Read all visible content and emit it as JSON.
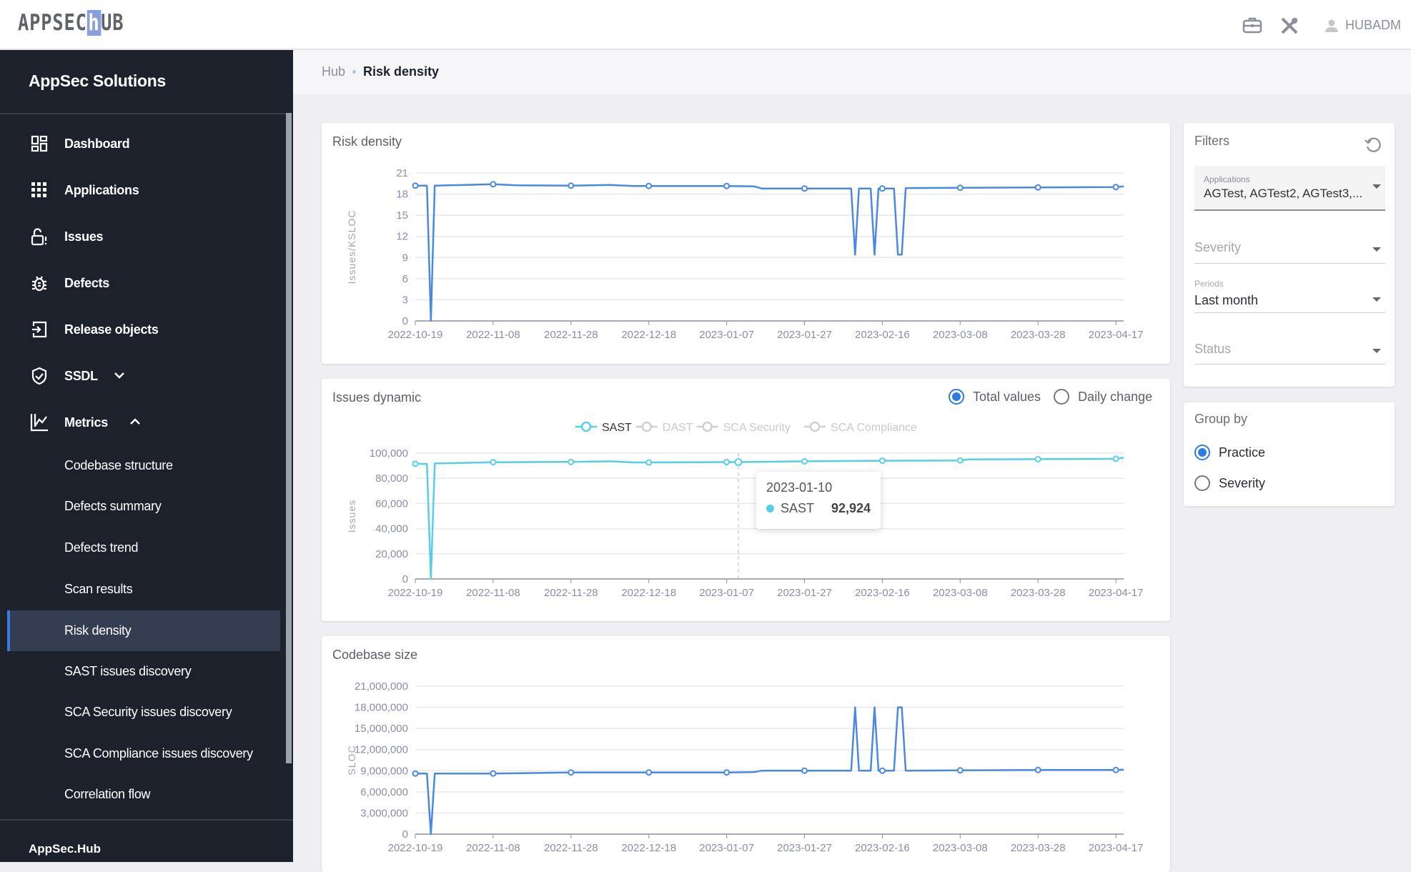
{
  "header": {
    "logo": "APPSEC HUB",
    "logo_left": "APPSEC",
    "logo_mark": "h",
    "logo_right": "UB",
    "user": "HUBADM",
    "icons": [
      "briefcase-icon",
      "tools-icon",
      "user-icon"
    ]
  },
  "sidebar": {
    "title": "AppSec Solutions",
    "items": [
      {
        "label": "Dashboard",
        "icon": "dashboard-icon"
      },
      {
        "label": "Applications",
        "icon": "apps-grid-icon"
      },
      {
        "label": "Issues",
        "icon": "unlocked-alert-icon"
      },
      {
        "label": "Defects",
        "icon": "bug-icon"
      },
      {
        "label": "Release objects",
        "icon": "release-icon"
      },
      {
        "label": "SSDL",
        "icon": "shield-check-icon",
        "expanded": false
      },
      {
        "label": "Metrics",
        "icon": "chart-icon",
        "expanded": true
      }
    ],
    "subitems": [
      {
        "label": "Codebase structure"
      },
      {
        "label": "Defects summary"
      },
      {
        "label": "Defects trend"
      },
      {
        "label": "Scan results"
      },
      {
        "label": "Risk density",
        "active": true
      },
      {
        "label": "SAST issues discovery"
      },
      {
        "label": "SCA Security issues discovery"
      },
      {
        "label": "SCA Compliance issues discovery"
      },
      {
        "label": "Correlation flow"
      }
    ],
    "footer": "AppSec.Hub"
  },
  "breadcrumb": {
    "root": "Hub",
    "current": "Risk density"
  },
  "issues_toggle": {
    "options": [
      "Total values",
      "Daily change"
    ],
    "selected": "Total values"
  },
  "tooltip": {
    "date": "2023-01-10",
    "series": "SAST",
    "value": "92,924",
    "color": "#56cfe6"
  },
  "filters": {
    "title": "Filters",
    "applications_label": "Applications",
    "applications_value": "AGTest, AGTest2, AGTest3,...",
    "severity_placeholder": "Severity",
    "periods_label": "Periods",
    "periods_value": "Last month",
    "status_placeholder": "Status"
  },
  "group_by": {
    "title": "Group by",
    "options": [
      "Practice",
      "Severity"
    ],
    "selected": "Practice"
  },
  "chart_data": [
    {
      "type": "line",
      "title": "Risk density",
      "ylabel": "Issues/KSLOC",
      "ylim": [
        0,
        21
      ],
      "yticks": [
        "0",
        "3",
        "6",
        "9",
        "12",
        "15",
        "18",
        "21"
      ],
      "ytick_values": [
        0,
        3,
        6,
        9,
        12,
        15,
        18,
        21
      ],
      "xlim": [
        "2022-10-19",
        "2023-04-19"
      ],
      "xticks": [
        "2022-10-19",
        "2022-11-08",
        "2022-11-28",
        "2022-12-18",
        "2023-01-07",
        "2023-01-27",
        "2023-02-16",
        "2023-03-08",
        "2023-03-28",
        "2023-04-17"
      ],
      "grid": true,
      "series": [
        {
          "color": "#4a89e0",
          "points": [
            [
              "2022-10-19",
              19.2
            ],
            [
              "2022-10-22",
              19.2
            ],
            [
              "2022-10-23",
              0
            ],
            [
              "2022-10-24",
              19.2
            ],
            [
              "2022-11-08",
              19.4
            ],
            [
              "2022-11-14",
              19.25
            ],
            [
              "2022-11-28",
              19.2
            ],
            [
              "2022-12-08",
              19.3
            ],
            [
              "2022-12-14",
              19.15
            ],
            [
              "2022-12-18",
              19.15
            ],
            [
              "2023-01-07",
              19.15
            ],
            [
              "2023-01-14",
              19.1
            ],
            [
              "2023-01-16",
              18.8
            ],
            [
              "2023-02-08",
              18.8
            ],
            [
              "2023-02-09",
              9.4
            ],
            [
              "2023-02-10",
              18.8
            ],
            [
              "2023-02-13",
              18.8
            ],
            [
              "2023-02-14",
              9.4
            ],
            [
              "2023-02-15",
              18.8
            ],
            [
              "2023-02-19",
              18.8
            ],
            [
              "2023-02-20",
              9.4
            ],
            [
              "2023-02-21",
              9.4
            ],
            [
              "2023-02-22",
              18.85
            ],
            [
              "2023-03-08",
              18.9
            ],
            [
              "2023-03-28",
              18.95
            ],
            [
              "2023-04-17",
              19.0
            ],
            [
              "2023-04-19",
              19.1
            ]
          ]
        }
      ]
    },
    {
      "type": "line",
      "title": "Issues dynamic",
      "ylabel": "Issues",
      "ylim": [
        0,
        100000
      ],
      "yticks": [
        "0",
        "20,000",
        "40,000",
        "60,000",
        "80,000",
        "100,000"
      ],
      "ytick_values": [
        0,
        20000,
        40000,
        60000,
        80000,
        100000
      ],
      "xlim": [
        "2022-10-19",
        "2023-04-19"
      ],
      "xticks": [
        "2022-10-19",
        "2022-11-08",
        "2022-11-28",
        "2022-12-18",
        "2023-01-07",
        "2023-01-27",
        "2023-02-16",
        "2023-03-08",
        "2023-03-28",
        "2023-04-17"
      ],
      "grid": true,
      "legend": [
        {
          "name": "SAST",
          "active": true,
          "color": "#56cfe6"
        },
        {
          "name": "DAST",
          "active": false
        },
        {
          "name": "SCA Security",
          "active": false
        },
        {
          "name": "SCA Compliance",
          "active": false
        }
      ],
      "series": [
        {
          "name": "SAST",
          "color": "#56cfe6",
          "points": [
            [
              "2022-10-19",
              91500
            ],
            [
              "2022-10-22",
              91500
            ],
            [
              "2022-10-23",
              0
            ],
            [
              "2022-10-24",
              91800
            ],
            [
              "2022-11-08",
              92800
            ],
            [
              "2022-11-28",
              93000
            ],
            [
              "2022-12-08",
              93500
            ],
            [
              "2022-12-14",
              92600
            ],
            [
              "2022-12-18",
              92600
            ],
            [
              "2023-01-07",
              92900
            ],
            [
              "2023-01-10",
              92924
            ],
            [
              "2023-01-27",
              93500
            ],
            [
              "2023-02-16",
              94000
            ],
            [
              "2023-03-08",
              94200
            ],
            [
              "2023-03-10",
              95000
            ],
            [
              "2023-03-28",
              95200
            ],
            [
              "2023-04-17",
              95500
            ],
            [
              "2023-04-19",
              96500
            ]
          ]
        }
      ]
    },
    {
      "type": "line",
      "title": "Codebase size",
      "ylabel": "SLOC",
      "ylim": [
        0,
        21000000
      ],
      "yticks": [
        "0",
        "3,000,000",
        "6,000,000",
        "9,000,000",
        "12,000,000",
        "15,000,000",
        "18,000,000",
        "21,000,000"
      ],
      "ytick_values": [
        0,
        3000000,
        6000000,
        9000000,
        12000000,
        15000000,
        18000000,
        21000000
      ],
      "xlim": [
        "2022-10-19",
        "2023-04-19"
      ],
      "xticks": [
        "2022-10-19",
        "2022-11-08",
        "2022-11-28",
        "2022-12-18",
        "2023-01-07",
        "2023-01-27",
        "2023-02-16",
        "2023-03-08",
        "2023-03-28",
        "2023-04-17"
      ],
      "grid": true,
      "series": [
        {
          "color": "#4a89e0",
          "points": [
            [
              "2022-10-19",
              8600000
            ],
            [
              "2022-10-22",
              8600000
            ],
            [
              "2022-10-23",
              0
            ],
            [
              "2022-10-24",
              8600000
            ],
            [
              "2022-11-08",
              8600000
            ],
            [
              "2022-11-28",
              8750000
            ],
            [
              "2022-12-18",
              8750000
            ],
            [
              "2023-01-07",
              8750000
            ],
            [
              "2023-01-14",
              8800000
            ],
            [
              "2023-01-16",
              9000000
            ],
            [
              "2023-02-08",
              9000000
            ],
            [
              "2023-02-09",
              18000000
            ],
            [
              "2023-02-10",
              9000000
            ],
            [
              "2023-02-13",
              9000000
            ],
            [
              "2023-02-14",
              18000000
            ],
            [
              "2023-02-15",
              9000000
            ],
            [
              "2023-02-19",
              9000000
            ],
            [
              "2023-02-20",
              18000000
            ],
            [
              "2023-02-21",
              18000000
            ],
            [
              "2023-02-22",
              9000000
            ],
            [
              "2023-03-08",
              9050000
            ],
            [
              "2023-03-28",
              9100000
            ],
            [
              "2023-04-17",
              9100000
            ],
            [
              "2023-04-19",
              9150000
            ]
          ]
        }
      ]
    }
  ]
}
